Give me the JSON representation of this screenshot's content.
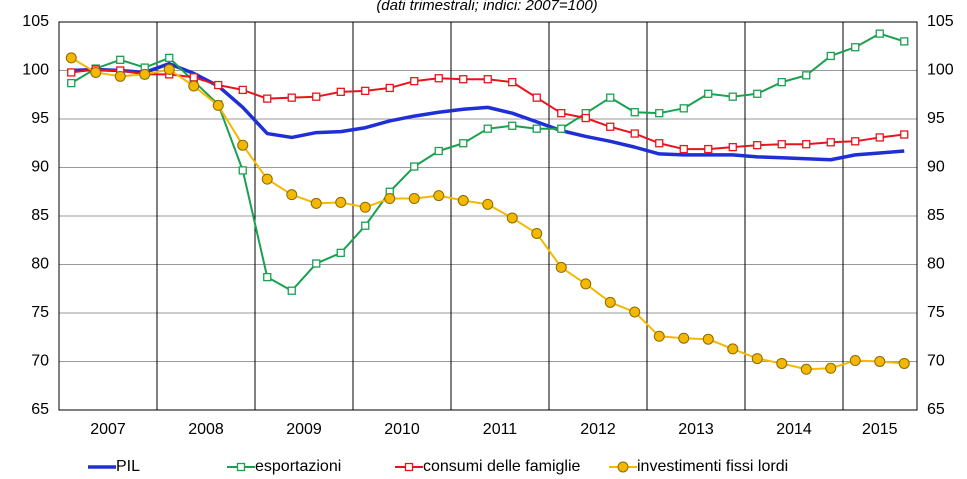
{
  "chart_data": {
    "type": "line",
    "subtitle": "(dati trimestrali; indici: 2007=100)",
    "years": [
      "2007",
      "2008",
      "2009",
      "2010",
      "2011",
      "2012",
      "2013",
      "2014",
      "2015"
    ],
    "ylim": [
      65,
      105
    ],
    "yticks": [
      65,
      70,
      75,
      80,
      85,
      90,
      95,
      100,
      105
    ],
    "y2lim": [
      65,
      105
    ],
    "y2ticks": [
      65,
      70,
      75,
      80,
      85,
      90,
      95,
      100,
      105
    ],
    "grid": true,
    "legend": "bottom",
    "series": [
      {
        "name": "PIL",
        "color": "#1f2fd8",
        "marker": "none",
        "values": [
          100.0,
          100.1,
          100.0,
          99.8,
          100.7,
          99.7,
          98.4,
          96.2,
          93.5,
          93.1,
          93.6,
          93.7,
          94.1,
          94.8,
          95.3,
          95.7,
          96.0,
          96.2,
          95.6,
          94.7,
          93.8,
          93.2,
          92.7,
          92.1,
          91.4,
          91.3,
          91.3,
          91.3,
          91.1,
          91.0,
          90.9,
          90.8,
          91.3,
          91.5,
          91.7
        ]
      },
      {
        "name": "esportazioni",
        "color": "#1aa14f",
        "marker": "square",
        "values": [
          98.7,
          100.2,
          101.1,
          100.3,
          101.3,
          98.9,
          96.5,
          89.7,
          78.7,
          77.3,
          80.1,
          81.2,
          84.0,
          87.5,
          90.1,
          91.7,
          92.5,
          94.0,
          94.3,
          94.0,
          94.0,
          95.6,
          97.2,
          95.7,
          95.6,
          96.1,
          97.6,
          97.3,
          97.6,
          98.8,
          99.5,
          101.5,
          102.4,
          103.8,
          103.0
        ]
      },
      {
        "name": "consumi delle famiglie",
        "color": "#e8141c",
        "marker": "square",
        "values": [
          99.8,
          100.1,
          100.0,
          99.6,
          99.6,
          99.3,
          98.5,
          98.0,
          97.1,
          97.2,
          97.3,
          97.8,
          97.9,
          98.2,
          98.9,
          99.2,
          99.1,
          99.1,
          98.8,
          97.2,
          95.6,
          95.1,
          94.2,
          93.5,
          92.5,
          91.9,
          91.9,
          92.1,
          92.3,
          92.4,
          92.4,
          92.6,
          92.7,
          93.1,
          93.4
        ]
      },
      {
        "name": "investimenti fissi lordi",
        "color": "#f5b800",
        "marker": "circle",
        "values": [
          101.3,
          99.8,
          99.4,
          99.6,
          100.1,
          98.4,
          96.4,
          92.3,
          88.8,
          87.2,
          86.3,
          86.4,
          85.9,
          86.8,
          86.8,
          87.1,
          86.6,
          86.2,
          84.8,
          83.2,
          79.7,
          78.0,
          76.1,
          75.1,
          72.6,
          72.4,
          72.3,
          71.3,
          70.3,
          69.8,
          69.2,
          69.3,
          70.1,
          70.0,
          69.8
        ]
      }
    ]
  }
}
